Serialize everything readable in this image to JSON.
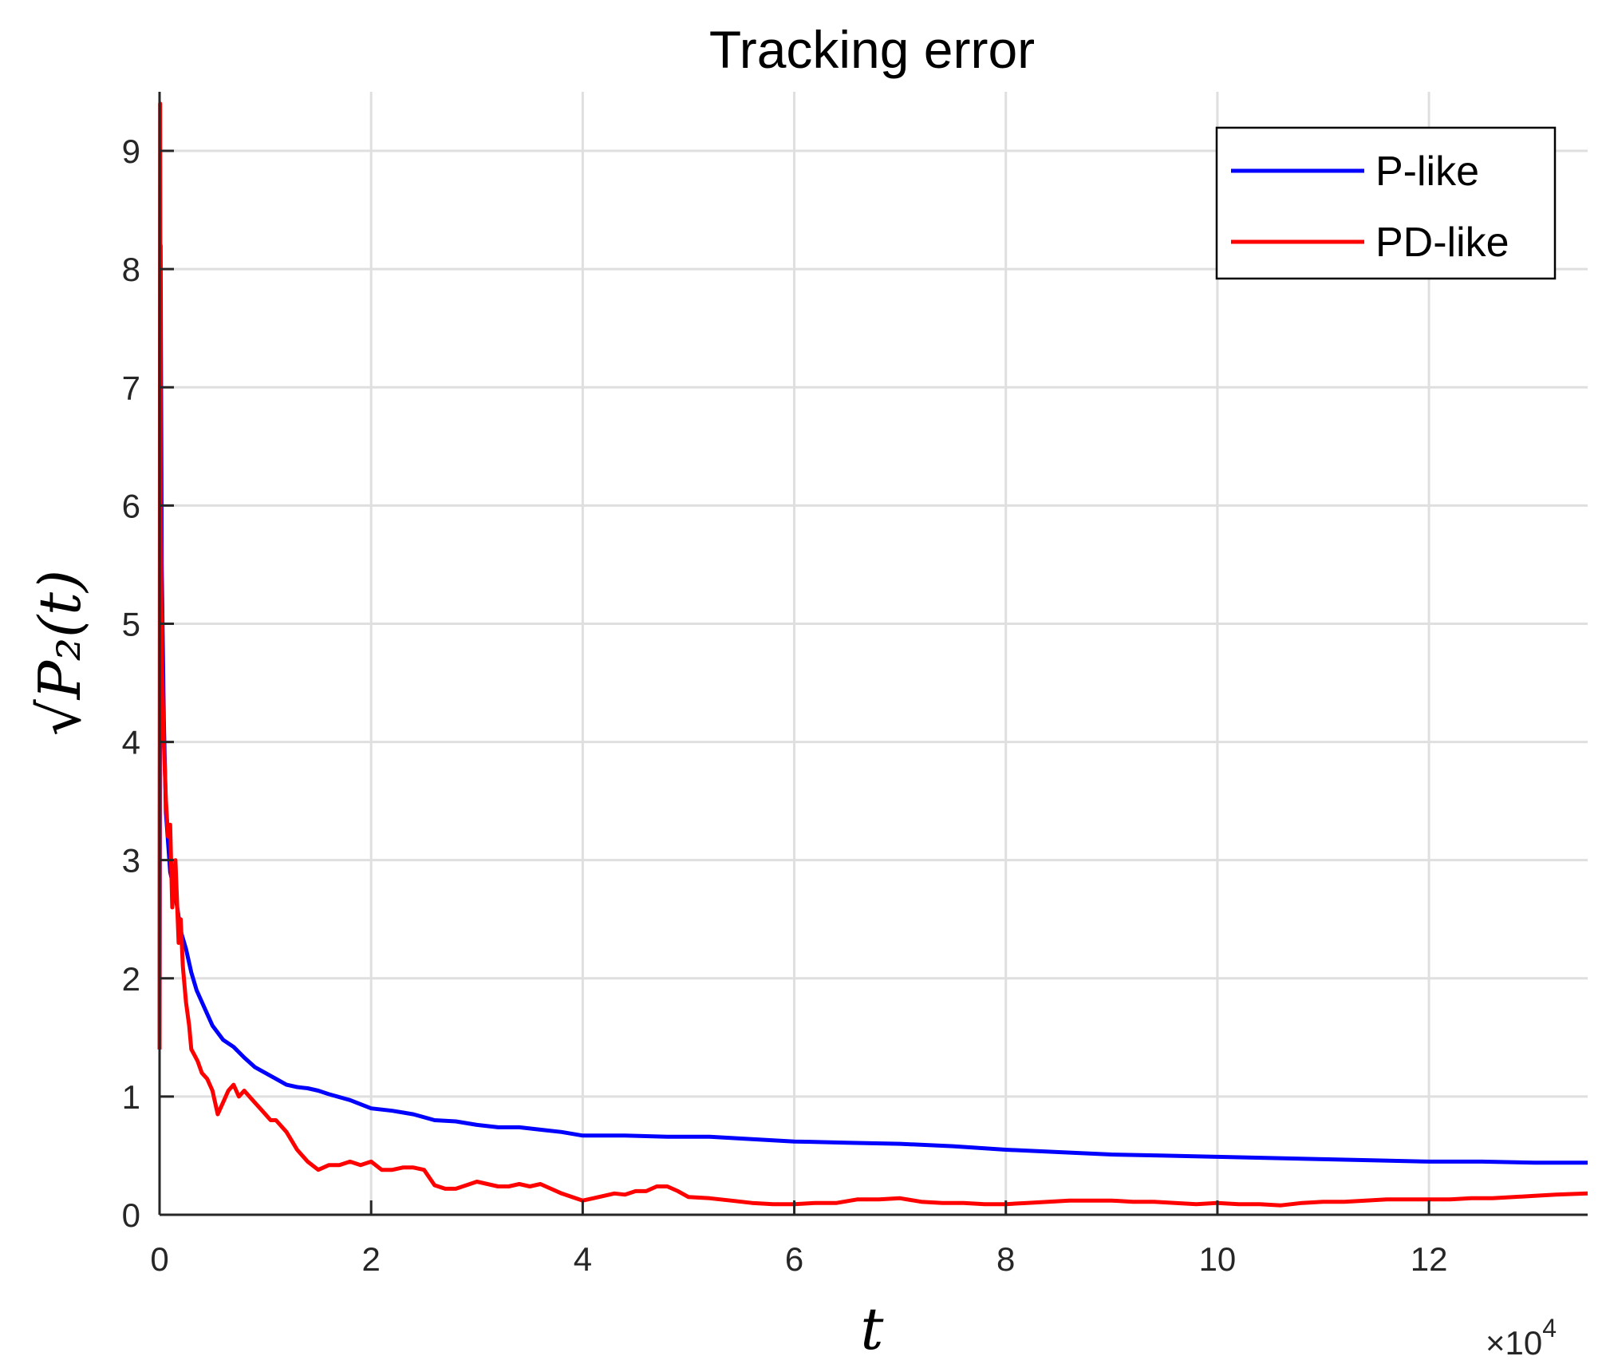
{
  "chart_data": {
    "type": "line",
    "title": "Tracking error",
    "xlabel": "t",
    "ylabel": "√P₂(t)",
    "x_multiplier": {
      "base": "×10",
      "exponent": "4"
    },
    "xlim": [
      0,
      13.5
    ],
    "ylim": [
      0,
      9.5
    ],
    "x_ticks": [
      0,
      2,
      4,
      6,
      8,
      10,
      12
    ],
    "x_tick_labels": [
      "0",
      "2",
      "4",
      "6",
      "8",
      "10",
      "12"
    ],
    "y_ticks": [
      0,
      1,
      2,
      3,
      4,
      5,
      6,
      7,
      8,
      9
    ],
    "y_tick_labels": [
      "0",
      "1",
      "2",
      "3",
      "4",
      "5",
      "6",
      "7",
      "8",
      "9"
    ],
    "grid": true,
    "legend_position": "top-right",
    "series": [
      {
        "name": "P-like",
        "color": "#0000ff",
        "x": [
          0,
          0.01,
          0.02,
          0.04,
          0.06,
          0.1,
          0.15,
          0.2,
          0.25,
          0.3,
          0.35,
          0.4,
          0.5,
          0.6,
          0.7,
          0.8,
          0.9,
          1.0,
          1.1,
          1.2,
          1.3,
          1.4,
          1.5,
          1.6,
          1.8,
          2.0,
          2.2,
          2.4,
          2.6,
          2.8,
          3.0,
          3.2,
          3.4,
          3.6,
          3.8,
          4.0,
          4.4,
          4.8,
          5.2,
          5.6,
          6.0,
          6.5,
          7.0,
          7.5,
          8.0,
          8.5,
          9.0,
          9.5,
          10.0,
          10.5,
          11.0,
          11.5,
          12.0,
          12.5,
          13.0,
          13.5
        ],
        "y": [
          1.4,
          8.2,
          5.5,
          4.2,
          3.4,
          2.9,
          2.7,
          2.4,
          2.25,
          2.05,
          1.9,
          1.8,
          1.6,
          1.48,
          1.42,
          1.33,
          1.25,
          1.2,
          1.15,
          1.1,
          1.08,
          1.07,
          1.05,
          1.02,
          0.97,
          0.9,
          0.88,
          0.85,
          0.8,
          0.79,
          0.76,
          0.74,
          0.74,
          0.72,
          0.7,
          0.67,
          0.67,
          0.66,
          0.66,
          0.64,
          0.62,
          0.61,
          0.6,
          0.58,
          0.55,
          0.53,
          0.51,
          0.5,
          0.49,
          0.48,
          0.47,
          0.46,
          0.45,
          0.45,
          0.44,
          0.44
        ]
      },
      {
        "name": "PD-like",
        "color": "#ff0000",
        "x": [
          0,
          0.005,
          0.01,
          0.02,
          0.04,
          0.06,
          0.08,
          0.1,
          0.12,
          0.15,
          0.18,
          0.2,
          0.22,
          0.25,
          0.28,
          0.3,
          0.33,
          0.36,
          0.4,
          0.45,
          0.5,
          0.55,
          0.6,
          0.65,
          0.7,
          0.75,
          0.8,
          0.85,
          0.9,
          0.95,
          1.0,
          1.05,
          1.1,
          1.2,
          1.3,
          1.4,
          1.5,
          1.6,
          1.7,
          1.8,
          1.9,
          2.0,
          2.1,
          2.2,
          2.3,
          2.4,
          2.5,
          2.6,
          2.7,
          2.8,
          2.9,
          3.0,
          3.1,
          3.2,
          3.3,
          3.4,
          3.5,
          3.6,
          3.7,
          3.8,
          3.9,
          4.0,
          4.1,
          4.2,
          4.3,
          4.4,
          4.5,
          4.6,
          4.7,
          4.8,
          4.9,
          5.0,
          5.2,
          5.4,
          5.6,
          5.8,
          6.0,
          6.2,
          6.4,
          6.6,
          6.8,
          7.0,
          7.2,
          7.4,
          7.6,
          7.8,
          8.0,
          8.2,
          8.4,
          8.6,
          8.8,
          9.0,
          9.2,
          9.4,
          9.6,
          9.8,
          10.0,
          10.2,
          10.4,
          10.6,
          10.8,
          11.0,
          11.2,
          11.4,
          11.6,
          11.8,
          12.0,
          12.2,
          12.4,
          12.6,
          12.8,
          13.0,
          13.2,
          13.5
        ],
        "y": [
          1.4,
          9.4,
          6.0,
          4.8,
          4.0,
          3.5,
          3.2,
          3.3,
          2.6,
          3.0,
          2.3,
          2.5,
          2.1,
          1.8,
          1.6,
          1.4,
          1.35,
          1.3,
          1.2,
          1.15,
          1.05,
          0.85,
          0.95,
          1.05,
          1.1,
          1.0,
          1.05,
          1.0,
          0.95,
          0.9,
          0.85,
          0.8,
          0.8,
          0.7,
          0.55,
          0.45,
          0.38,
          0.42,
          0.42,
          0.45,
          0.42,
          0.45,
          0.38,
          0.38,
          0.4,
          0.4,
          0.38,
          0.25,
          0.22,
          0.22,
          0.25,
          0.28,
          0.26,
          0.24,
          0.24,
          0.26,
          0.24,
          0.26,
          0.22,
          0.18,
          0.15,
          0.12,
          0.14,
          0.16,
          0.18,
          0.17,
          0.2,
          0.2,
          0.24,
          0.24,
          0.2,
          0.15,
          0.14,
          0.12,
          0.1,
          0.09,
          0.09,
          0.1,
          0.1,
          0.13,
          0.13,
          0.14,
          0.11,
          0.1,
          0.1,
          0.09,
          0.09,
          0.1,
          0.11,
          0.12,
          0.12,
          0.12,
          0.11,
          0.11,
          0.1,
          0.09,
          0.1,
          0.09,
          0.09,
          0.08,
          0.1,
          0.11,
          0.11,
          0.12,
          0.13,
          0.13,
          0.13,
          0.13,
          0.14,
          0.14,
          0.15,
          0.16,
          0.17,
          0.18
        ]
      }
    ]
  }
}
